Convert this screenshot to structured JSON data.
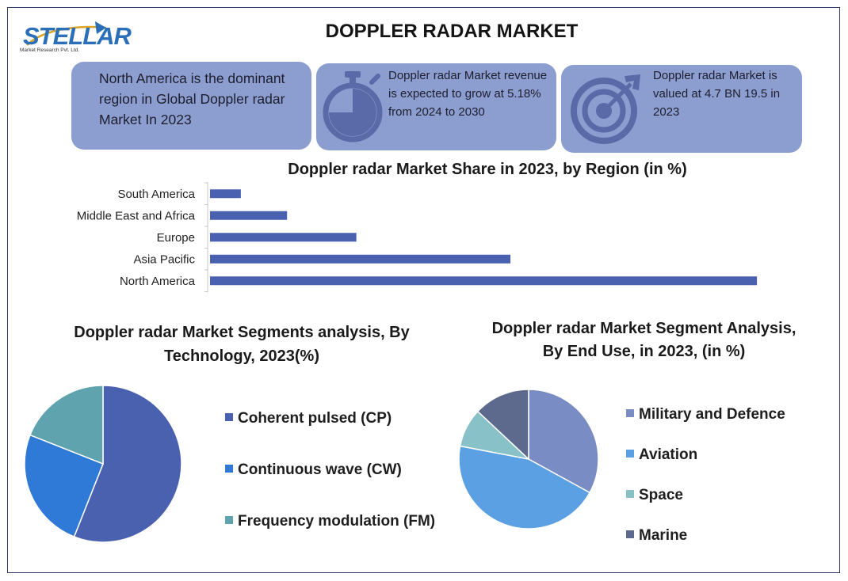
{
  "logo": {
    "word": "STELLAR",
    "sub": "Market Research Pvt. Ltd."
  },
  "title": "DOPPLER RADAR MARKET",
  "cards": {
    "region": {
      "text": "North America is the dominant region in Global Doppler radar Market In 2023",
      "icon": "none"
    },
    "growth": {
      "text": "Doppler radar Market revenue is expected to grow at 5.18% from 2024 to 2030",
      "icon": "stopwatch-icon"
    },
    "value": {
      "text": "Doppler radar Market is valued at 4.7 BN 19.5 in 2023",
      "icon": "target-icon"
    }
  },
  "colors": {
    "card": "#8c9dcf",
    "bar": "#4a61b0"
  },
  "chart_data": [
    {
      "type": "bar",
      "orientation": "horizontal",
      "title": "Doppler radar Market Share in 2023, by Region (in %)",
      "categories": [
        "South America",
        "Middle East and Africa",
        "Europe",
        "Asia Pacific",
        "North America"
      ],
      "values": [
        4,
        10,
        19,
        39,
        71
      ],
      "grid": false,
      "colors": [
        "#4a61b0"
      ]
    },
    {
      "type": "pie",
      "title": "Doppler radar Market Segments analysis, By Technology, 2023(%)",
      "labels": [
        "Coherent pulsed (CP)",
        "Continuous wave (CW)",
        "Frequency modulation (FM)"
      ],
      "values": [
        56,
        25,
        19
      ],
      "colors": [
        "#4a61b0",
        "#2e7ad6",
        "#5ea3ad"
      ],
      "legend_position": "right"
    },
    {
      "type": "pie",
      "title": "Doppler radar Market Segment Analysis, By End Use, in 2023, (in %)",
      "labels": [
        "Military and Defence",
        "Aviation",
        "Space",
        "Marine"
      ],
      "values": [
        33,
        45,
        9,
        13
      ],
      "colors": [
        "#7a8cc4",
        "#5aa0e2",
        "#88c2c8",
        "#5d6a8e"
      ],
      "legend_position": "right"
    }
  ]
}
